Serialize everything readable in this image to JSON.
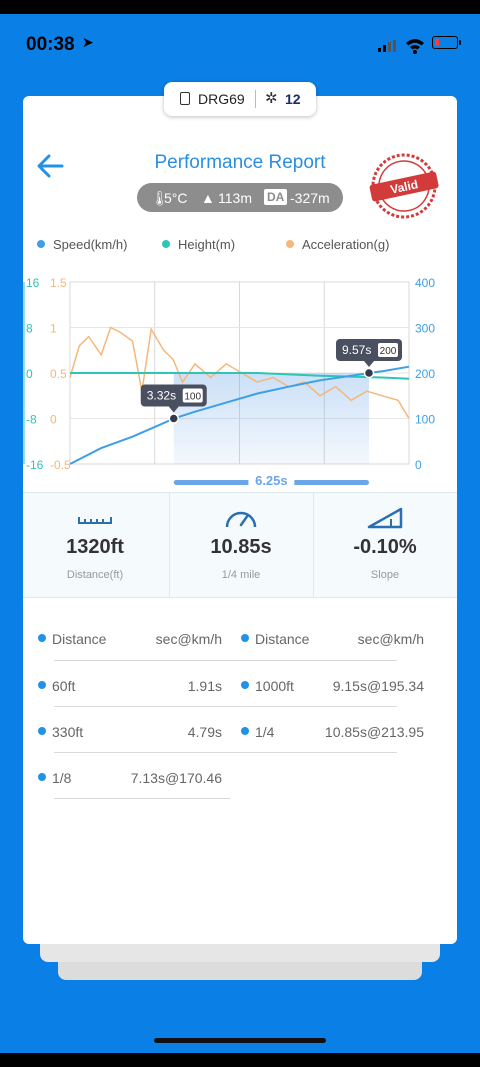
{
  "status": {
    "time": "00:38"
  },
  "device": {
    "name": "DRG69",
    "satellites": "12"
  },
  "header": {
    "title": "Performance Report",
    "stamp": "Valid"
  },
  "conditions": {
    "temperature": "5°C",
    "altitude": "113m",
    "da_label": "DA",
    "da_value": "-327m"
  },
  "legend": [
    {
      "label": "Speed(km/h)",
      "color": "#3d9fe8"
    },
    {
      "label": "Height(m)",
      "color": "#2ec4b6"
    },
    {
      "label": "Acceleration(g)",
      "color": "#f5b77a"
    }
  ],
  "chart_data": {
    "type": "line",
    "axes": {
      "height_ticks": [
        "16",
        "8",
        "0",
        "-8",
        "-16"
      ],
      "accel_ticks": [
        "1.5",
        "1",
        "0.5",
        "0",
        "-0.5"
      ],
      "speed_ticks": [
        "400",
        "300",
        "200",
        "100",
        "0"
      ]
    },
    "series": [
      {
        "name": "Speed(km/h)",
        "color": "#3d9fe8",
        "x": [
          0,
          1,
          2,
          3,
          3.32,
          4,
          5,
          6,
          7,
          8,
          9,
          9.57,
          10,
          10.85
        ],
        "y": [
          0,
          35,
          60,
          90,
          100,
          115,
          135,
          155,
          170,
          184,
          194,
          200,
          204,
          213.95
        ]
      },
      {
        "name": "Height(m)",
        "color": "#2ec4b6",
        "x": [
          0,
          2,
          4,
          6,
          8,
          10,
          10.85
        ],
        "y": [
          0,
          0,
          0,
          0,
          -0.5,
          -0.8,
          -1
        ]
      },
      {
        "name": "Acceleration(g)",
        "color": "#f5b77a",
        "x": [
          0,
          0.3,
          0.6,
          1,
          1.3,
          1.6,
          2,
          2.3,
          2.6,
          3,
          3.3,
          3.6,
          4,
          4.5,
          5,
          5.5,
          6,
          6.5,
          7,
          7.5,
          8,
          8.5,
          9,
          9.5,
          10,
          10.5,
          10.85
        ],
        "y": [
          0.45,
          0.8,
          0.9,
          0.7,
          1.0,
          0.95,
          0.85,
          0.3,
          0.98,
          0.75,
          0.65,
          0.4,
          0.6,
          0.45,
          0.6,
          0.5,
          0.4,
          0.45,
          0.35,
          0.4,
          0.25,
          0.35,
          0.2,
          0.3,
          0.25,
          0.2,
          0.0
        ]
      }
    ],
    "markers": [
      {
        "time": "3.32s",
        "speed": "100",
        "x": 3.32,
        "y": 100
      },
      {
        "time": "9.57s",
        "speed": "200",
        "x": 9.57,
        "y": 200
      }
    ],
    "interval": "6.25s",
    "xlim": [
      0,
      10.85
    ],
    "ylim_speed": [
      0,
      400
    ]
  },
  "stats": [
    {
      "value": "1320ft",
      "label": "Distance(ft)",
      "icon": "ruler-icon"
    },
    {
      "value": "10.85s",
      "label": "1/4 mile",
      "icon": "speedometer-icon"
    },
    {
      "value": "-0.10%",
      "label": "Slope",
      "icon": "slope-icon"
    }
  ],
  "table": {
    "left_header": {
      "label": "Distance",
      "unit": "sec@km/h"
    },
    "right_header": {
      "label": "Distance",
      "unit": "sec@km/h"
    },
    "left_rows": [
      {
        "label": "60ft",
        "value": "1.91s"
      },
      {
        "label": "330ft",
        "value": "4.79s"
      },
      {
        "label": "1/8",
        "value": "7.13s@170.46"
      }
    ],
    "right_rows": [
      {
        "label": "1000ft",
        "value": "9.15s@195.34"
      },
      {
        "label": "1/4",
        "value": "10.85s@213.95"
      }
    ]
  }
}
